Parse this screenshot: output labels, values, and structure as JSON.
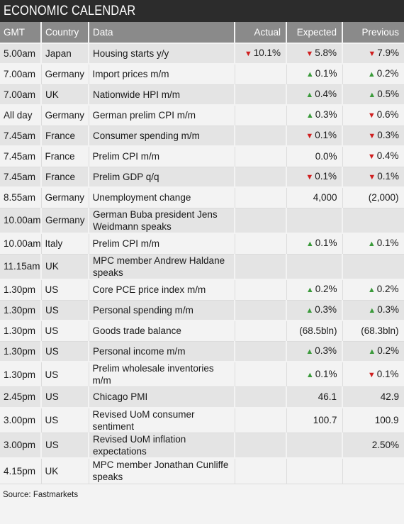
{
  "title": "ECONOMIC CALENDAR",
  "columns": {
    "gmt": "GMT",
    "country": "Country",
    "data": "Data",
    "actual": "Actual",
    "expected": "Expected",
    "previous": "Previous"
  },
  "colors": {
    "up": "#3a9a3a",
    "down": "#cf1f1f",
    "header_bg": "#8a8a8a",
    "title_bg": "#2c2c2c"
  },
  "rows": [
    {
      "gmt": "5.00am",
      "country": "Japan",
      "data": "Housing starts y/y",
      "actual": {
        "text": "10.1%",
        "dir": "down"
      },
      "expected": {
        "text": "5.8%",
        "dir": "down"
      },
      "previous": {
        "text": "7.9%",
        "dir": "down"
      }
    },
    {
      "gmt": "7.00am",
      "country": "Germany",
      "data": "Import prices m/m",
      "actual": {
        "text": "",
        "dir": ""
      },
      "expected": {
        "text": "0.1%",
        "dir": "up"
      },
      "previous": {
        "text": "0.2%",
        "dir": "up"
      }
    },
    {
      "gmt": "7.00am",
      "country": "UK",
      "data": "Nationwide HPI m/m",
      "actual": {
        "text": "",
        "dir": ""
      },
      "expected": {
        "text": "0.4%",
        "dir": "up"
      },
      "previous": {
        "text": "0.5%",
        "dir": "up"
      }
    },
    {
      "gmt": "All day",
      "country": "Germany",
      "data": "German prelim CPI m/m",
      "actual": {
        "text": "",
        "dir": ""
      },
      "expected": {
        "text": "0.3%",
        "dir": "up"
      },
      "previous": {
        "text": "0.6%",
        "dir": "down"
      }
    },
    {
      "gmt": "7.45am",
      "country": "France",
      "data": "Consumer spending m/m",
      "actual": {
        "text": "",
        "dir": ""
      },
      "expected": {
        "text": "0.1%",
        "dir": "down"
      },
      "previous": {
        "text": "0.3%",
        "dir": "down"
      }
    },
    {
      "gmt": "7.45am",
      "country": "France",
      "data": "Prelim CPI m/m",
      "actual": {
        "text": "",
        "dir": ""
      },
      "expected": {
        "text": "0.0%",
        "dir": ""
      },
      "previous": {
        "text": "0.4%",
        "dir": "down"
      }
    },
    {
      "gmt": "7.45am",
      "country": "France",
      "data": "Prelim GDP q/q",
      "actual": {
        "text": "",
        "dir": ""
      },
      "expected": {
        "text": "0.1%",
        "dir": "down"
      },
      "previous": {
        "text": "0.1%",
        "dir": "down"
      }
    },
    {
      "gmt": "8.55am",
      "country": "Germany",
      "data": "Unemployment change",
      "actual": {
        "text": "",
        "dir": ""
      },
      "expected": {
        "text": "4,000",
        "dir": ""
      },
      "previous": {
        "text": "(2,000)",
        "dir": ""
      }
    },
    {
      "gmt": "10.00am",
      "country": "Germany",
      "data": "German Buba president Jens Weidmann speaks",
      "actual": {
        "text": "",
        "dir": ""
      },
      "expected": {
        "text": "",
        "dir": ""
      },
      "previous": {
        "text": "",
        "dir": ""
      }
    },
    {
      "gmt": "10.00am",
      "country": "Italy",
      "data": "Prelim CPI m/m",
      "actual": {
        "text": "",
        "dir": ""
      },
      "expected": {
        "text": "0.1%",
        "dir": "up"
      },
      "previous": {
        "text": "0.1%",
        "dir": "up"
      }
    },
    {
      "gmt": "11.15am",
      "country": "UK",
      "data": "MPC member Andrew Haldane speaks",
      "actual": {
        "text": "",
        "dir": ""
      },
      "expected": {
        "text": "",
        "dir": ""
      },
      "previous": {
        "text": "",
        "dir": ""
      }
    },
    {
      "gmt": "1.30pm",
      "country": "US",
      "data": "Core PCE price index m/m",
      "actual": {
        "text": "",
        "dir": ""
      },
      "expected": {
        "text": "0.2%",
        "dir": "up"
      },
      "previous": {
        "text": "0.2%",
        "dir": "up"
      }
    },
    {
      "gmt": "1.30pm",
      "country": "US",
      "data": "Personal spending m/m",
      "actual": {
        "text": "",
        "dir": ""
      },
      "expected": {
        "text": "0.3%",
        "dir": "up"
      },
      "previous": {
        "text": "0.3%",
        "dir": "up"
      }
    },
    {
      "gmt": "1.30pm",
      "country": "US",
      "data": "Goods trade balance",
      "actual": {
        "text": "",
        "dir": ""
      },
      "expected": {
        "text": "(68.5bln)",
        "dir": ""
      },
      "previous": {
        "text": "(68.3bln)",
        "dir": ""
      }
    },
    {
      "gmt": "1.30pm",
      "country": "US",
      "data": "Personal income m/m",
      "actual": {
        "text": "",
        "dir": ""
      },
      "expected": {
        "text": "0.3%",
        "dir": "up"
      },
      "previous": {
        "text": "0.2%",
        "dir": "up"
      }
    },
    {
      "gmt": "1.30pm",
      "country": "US",
      "data": "Prelim wholesale inventories m/m",
      "actual": {
        "text": "",
        "dir": ""
      },
      "expected": {
        "text": "0.1%",
        "dir": "up"
      },
      "previous": {
        "text": "0.1%",
        "dir": "down"
      }
    },
    {
      "gmt": "2.45pm",
      "country": "US",
      "data": "Chicago PMI",
      "actual": {
        "text": "",
        "dir": ""
      },
      "expected": {
        "text": "46.1",
        "dir": ""
      },
      "previous": {
        "text": "42.9",
        "dir": ""
      }
    },
    {
      "gmt": "3.00pm",
      "country": "US",
      "data": "Revised UoM consumer sentiment",
      "actual": {
        "text": "",
        "dir": ""
      },
      "expected": {
        "text": "100.7",
        "dir": ""
      },
      "previous": {
        "text": "100.9",
        "dir": ""
      }
    },
    {
      "gmt": "3.00pm",
      "country": "US",
      "data": "Revised UoM inflation expectations",
      "actual": {
        "text": "",
        "dir": ""
      },
      "expected": {
        "text": "",
        "dir": ""
      },
      "previous": {
        "text": "2.50%",
        "dir": ""
      }
    },
    {
      "gmt": "4.15pm",
      "country": "UK",
      "data": "MPC member Jonathan Cunliffe speaks",
      "actual": {
        "text": "",
        "dir": ""
      },
      "expected": {
        "text": "",
        "dir": ""
      },
      "previous": {
        "text": "",
        "dir": ""
      }
    }
  ],
  "source": "Source: Fastmarkets"
}
